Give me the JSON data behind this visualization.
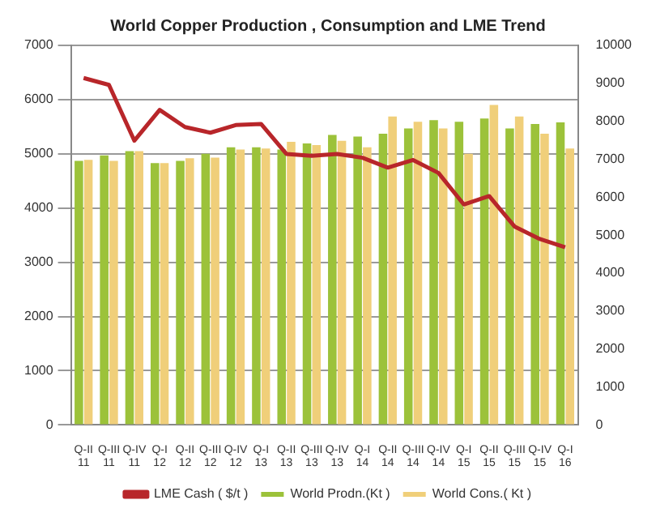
{
  "chart_data": {
    "type": "bar",
    "title": "World Copper Production , Consumption and LME Trend",
    "categories": [
      "Q-II 11",
      "Q-III 11",
      "Q-IV 11",
      "Q-I 12",
      "Q-II 12",
      "Q-III 12",
      "Q-IV 12",
      "Q-I 13",
      "Q-II 13",
      "Q-III 13",
      "Q-IV 13",
      "Q-I 14",
      "Q-II 14",
      "Q-III 14",
      "Q-IV 14",
      "Q-I 15",
      "Q-II 15",
      "Q-III 15",
      "Q-IV 15",
      "Q-I 16"
    ],
    "series": [
      {
        "name": "World Prodn.(Kt )",
        "color": "#9cc23a",
        "values": [
          4870,
          4970,
          5050,
          4830,
          4870,
          5000,
          5120,
          5120,
          5080,
          5190,
          5350,
          5320,
          5370,
          5470,
          5620,
          5590,
          5650,
          5470,
          5550,
          5580
        ]
      },
      {
        "name": "World Cons.( Kt )",
        "color": "#f0cf7a",
        "values": [
          4890,
          4870,
          5050,
          4830,
          4920,
          4930,
          5080,
          5100,
          5220,
          5160,
          5240,
          5120,
          5690,
          5590,
          5470,
          5000,
          5900,
          5690,
          5370,
          5100
        ]
      },
      {
        "name": "LME Cash ( $/t )",
        "type": "line",
        "axis": "y2",
        "color": "#b8262a",
        "values": [
          9140,
          8960,
          7490,
          8300,
          7850,
          7700,
          7900,
          7930,
          7140,
          7090,
          7140,
          7040,
          6780,
          6980,
          6640,
          5810,
          6030,
          5230,
          4900,
          4680
        ]
      }
    ],
    "ylim": [
      0,
      7000
    ],
    "yticks": [
      0,
      1000,
      2000,
      3000,
      4000,
      5000,
      6000,
      7000
    ],
    "y2lim": [
      0,
      10000
    ],
    "y2ticks": [
      0,
      1000,
      2000,
      3000,
      4000,
      5000,
      6000,
      7000,
      8000,
      9000,
      10000
    ],
    "grid": "y",
    "legend": "bottom",
    "marker": "none",
    "line_style": "solid"
  }
}
